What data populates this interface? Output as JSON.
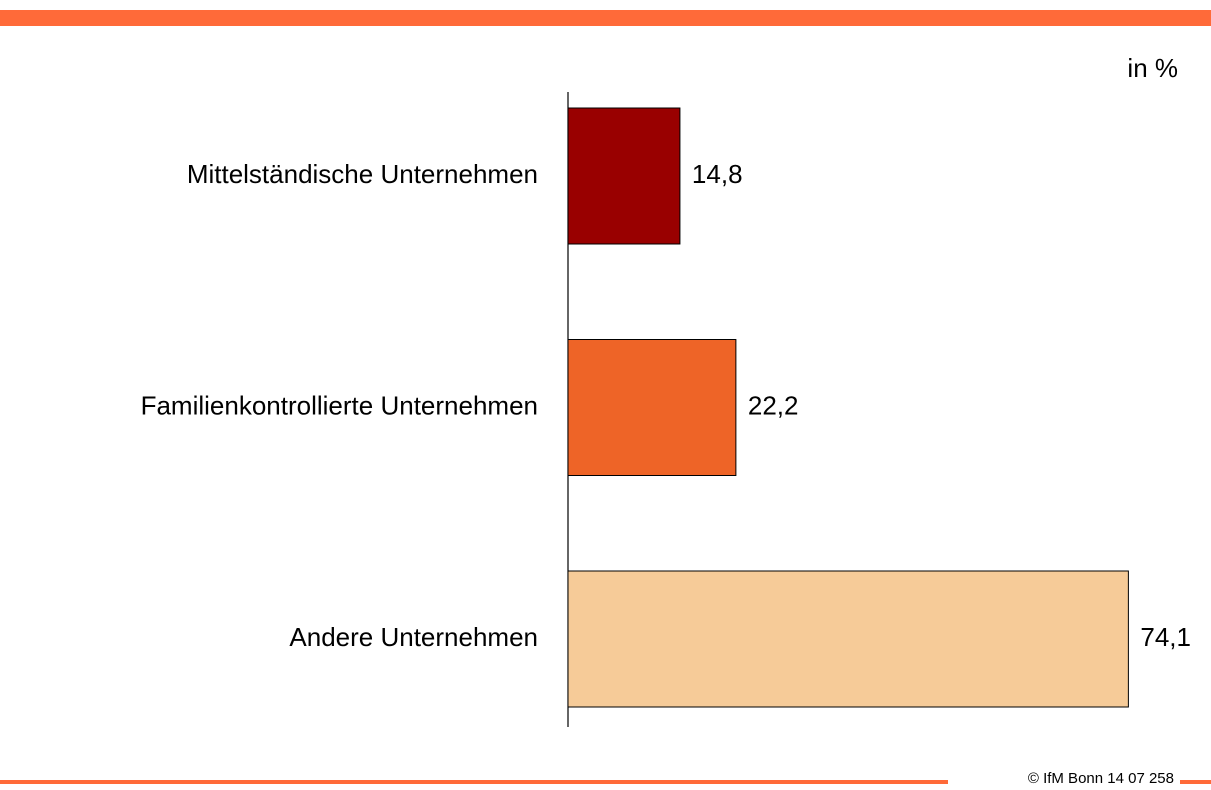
{
  "chart_data": {
    "type": "bar",
    "orientation": "horizontal",
    "unit_label": "in %",
    "categories": [
      "Mittelständische Unternehmen",
      "Familienkontrollierte Unternehmen",
      "Andere Unternehmen"
    ],
    "values": [
      14.8,
      22.2,
      74.1
    ],
    "value_labels": [
      "14,8",
      "22,2",
      "74,1"
    ],
    "colors": [
      "#990000",
      "#ee6427",
      "#f6cb98"
    ],
    "xlim": [
      0,
      80
    ]
  },
  "footer": {
    "text": "© IfM Bonn 14 07 258"
  }
}
